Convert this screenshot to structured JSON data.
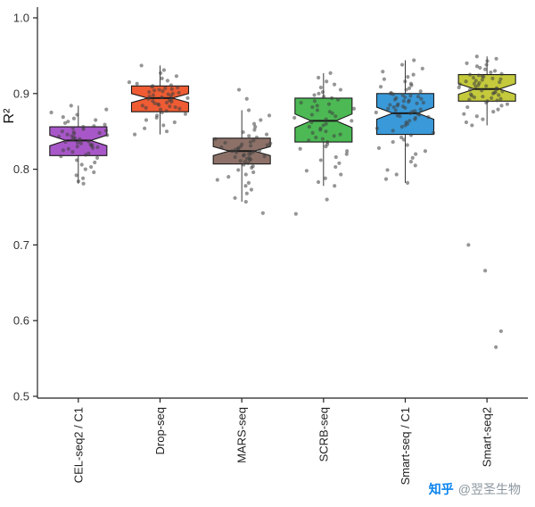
{
  "watermark": {
    "brand": "知乎",
    "handle": "@翌圣生物",
    "brand_color": "#0b84ee",
    "text_color": "#8a959e"
  },
  "chart_data": {
    "type": "boxplot",
    "title": "",
    "ylabel": "R²",
    "xlabel": "",
    "ylim": [
      0.5,
      1.0
    ],
    "yticks": [
      0.5,
      0.6,
      0.7,
      0.8,
      0.9,
      1.0
    ],
    "ytick_labels": [
      "0.5",
      "0.6",
      "0.7",
      "0.8",
      "0.9",
      "1.0"
    ],
    "grid": false,
    "legend": "none",
    "notched": true,
    "jitter_overlay": true,
    "axis_color": "#222222",
    "point_color": "#404040",
    "point_opacity": 0.55,
    "categories": [
      "CEL-seq2 / C1",
      "Drop-seq",
      "MARS-seq",
      "SCRB-seq",
      "Smart-seq / C1",
      "Smart-seq2"
    ],
    "groups": [
      {
        "name": "CEL-seq2 / C1",
        "color": "#a857c8",
        "q1": 0.818,
        "median": 0.838,
        "q3": 0.856,
        "notch_low": 0.831,
        "notch_high": 0.845,
        "whisker_low": 0.781,
        "whisker_high": 0.884,
        "points": [
          0.884,
          0.879,
          0.875,
          0.872,
          0.869,
          0.867,
          0.865,
          0.863,
          0.861,
          0.859,
          0.857,
          0.856,
          0.854,
          0.853,
          0.851,
          0.85,
          0.849,
          0.848,
          0.847,
          0.846,
          0.845,
          0.844,
          0.843,
          0.842,
          0.841,
          0.84,
          0.839,
          0.838,
          0.837,
          0.836,
          0.835,
          0.834,
          0.833,
          0.832,
          0.831,
          0.83,
          0.829,
          0.828,
          0.827,
          0.825,
          0.823,
          0.821,
          0.819,
          0.817,
          0.815,
          0.812,
          0.809,
          0.806,
          0.803,
          0.8,
          0.796,
          0.792,
          0.788,
          0.784,
          0.781
        ]
      },
      {
        "name": "Drop-seq",
        "color": "#ef5c33",
        "q1": 0.876,
        "median": 0.894,
        "q3": 0.91,
        "notch_low": 0.888,
        "notch_high": 0.9,
        "whisker_low": 0.846,
        "whisker_high": 0.937,
        "points": [
          0.937,
          0.931,
          0.927,
          0.923,
          0.92,
          0.917,
          0.915,
          0.913,
          0.911,
          0.91,
          0.909,
          0.908,
          0.907,
          0.906,
          0.905,
          0.904,
          0.903,
          0.902,
          0.901,
          0.9,
          0.899,
          0.898,
          0.897,
          0.896,
          0.895,
          0.894,
          0.893,
          0.892,
          0.891,
          0.89,
          0.889,
          0.888,
          0.887,
          0.886,
          0.885,
          0.884,
          0.883,
          0.882,
          0.881,
          0.88,
          0.879,
          0.877,
          0.875,
          0.873,
          0.871,
          0.868,
          0.865,
          0.862,
          0.858,
          0.854,
          0.85,
          0.846
        ]
      },
      {
        "name": "MARS-seq",
        "color": "#8d7168",
        "q1": 0.807,
        "median": 0.824,
        "q3": 0.841,
        "notch_low": 0.818,
        "notch_high": 0.83,
        "whisker_low": 0.757,
        "whisker_high": 0.878,
        "points": [
          0.905,
          0.893,
          0.878,
          0.871,
          0.865,
          0.86,
          0.856,
          0.852,
          0.849,
          0.846,
          0.844,
          0.842,
          0.84,
          0.838,
          0.836,
          0.835,
          0.834,
          0.833,
          0.832,
          0.831,
          0.83,
          0.829,
          0.828,
          0.827,
          0.826,
          0.825,
          0.824,
          0.823,
          0.822,
          0.821,
          0.82,
          0.819,
          0.818,
          0.817,
          0.816,
          0.815,
          0.814,
          0.813,
          0.812,
          0.811,
          0.81,
          0.808,
          0.806,
          0.804,
          0.802,
          0.799,
          0.796,
          0.793,
          0.79,
          0.786,
          0.782,
          0.778,
          0.773,
          0.768,
          0.762,
          0.757,
          0.742
        ]
      },
      {
        "name": "SCRB-seq",
        "color": "#4cb954",
        "q1": 0.836,
        "median": 0.864,
        "q3": 0.894,
        "notch_low": 0.855,
        "notch_high": 0.873,
        "whisker_low": 0.778,
        "whisker_high": 0.927,
        "points": [
          0.927,
          0.921,
          0.916,
          0.912,
          0.908,
          0.905,
          0.902,
          0.9,
          0.898,
          0.896,
          0.894,
          0.892,
          0.89,
          0.888,
          0.886,
          0.884,
          0.882,
          0.88,
          0.878,
          0.876,
          0.874,
          0.872,
          0.87,
          0.868,
          0.866,
          0.864,
          0.862,
          0.86,
          0.858,
          0.856,
          0.854,
          0.852,
          0.85,
          0.848,
          0.846,
          0.844,
          0.842,
          0.84,
          0.838,
          0.836,
          0.833,
          0.83,
          0.827,
          0.824,
          0.82,
          0.816,
          0.812,
          0.808,
          0.803,
          0.798,
          0.793,
          0.788,
          0.783,
          0.778,
          0.76,
          0.741
        ]
      },
      {
        "name": "Smart-seq / C1",
        "color": "#3a99d8",
        "q1": 0.846,
        "median": 0.874,
        "q3": 0.9,
        "notch_low": 0.866,
        "notch_high": 0.882,
        "whisker_low": 0.782,
        "whisker_high": 0.944,
        "points": [
          0.944,
          0.938,
          0.933,
          0.929,
          0.925,
          0.922,
          0.919,
          0.916,
          0.913,
          0.911,
          0.909,
          0.907,
          0.905,
          0.903,
          0.901,
          0.9,
          0.899,
          0.898,
          0.897,
          0.896,
          0.895,
          0.894,
          0.893,
          0.892,
          0.891,
          0.89,
          0.889,
          0.888,
          0.887,
          0.886,
          0.885,
          0.884,
          0.883,
          0.882,
          0.881,
          0.88,
          0.879,
          0.878,
          0.877,
          0.876,
          0.875,
          0.874,
          0.873,
          0.872,
          0.871,
          0.87,
          0.869,
          0.868,
          0.866,
          0.864,
          0.862,
          0.86,
          0.858,
          0.856,
          0.854,
          0.851,
          0.848,
          0.845,
          0.842,
          0.839,
          0.836,
          0.832,
          0.828,
          0.824,
          0.82,
          0.815,
          0.81,
          0.805,
          0.799,
          0.793,
          0.787,
          0.782
        ]
      },
      {
        "name": "Smart-seq2",
        "color": "#c4ca3b",
        "q1": 0.89,
        "median": 0.906,
        "q3": 0.925,
        "notch_low": 0.899,
        "notch_high": 0.913,
        "whisker_low": 0.858,
        "whisker_high": 0.949,
        "points": [
          0.949,
          0.946,
          0.943,
          0.94,
          0.938,
          0.936,
          0.934,
          0.932,
          0.93,
          0.928,
          0.926,
          0.925,
          0.924,
          0.923,
          0.922,
          0.921,
          0.92,
          0.919,
          0.918,
          0.917,
          0.916,
          0.915,
          0.914,
          0.913,
          0.912,
          0.911,
          0.91,
          0.909,
          0.908,
          0.907,
          0.906,
          0.905,
          0.904,
          0.903,
          0.902,
          0.901,
          0.9,
          0.899,
          0.898,
          0.897,
          0.896,
          0.895,
          0.894,
          0.893,
          0.892,
          0.891,
          0.89,
          0.888,
          0.886,
          0.884,
          0.882,
          0.879,
          0.876,
          0.873,
          0.87,
          0.866,
          0.862,
          0.858,
          0.7,
          0.666,
          0.586,
          0.565
        ]
      }
    ]
  }
}
